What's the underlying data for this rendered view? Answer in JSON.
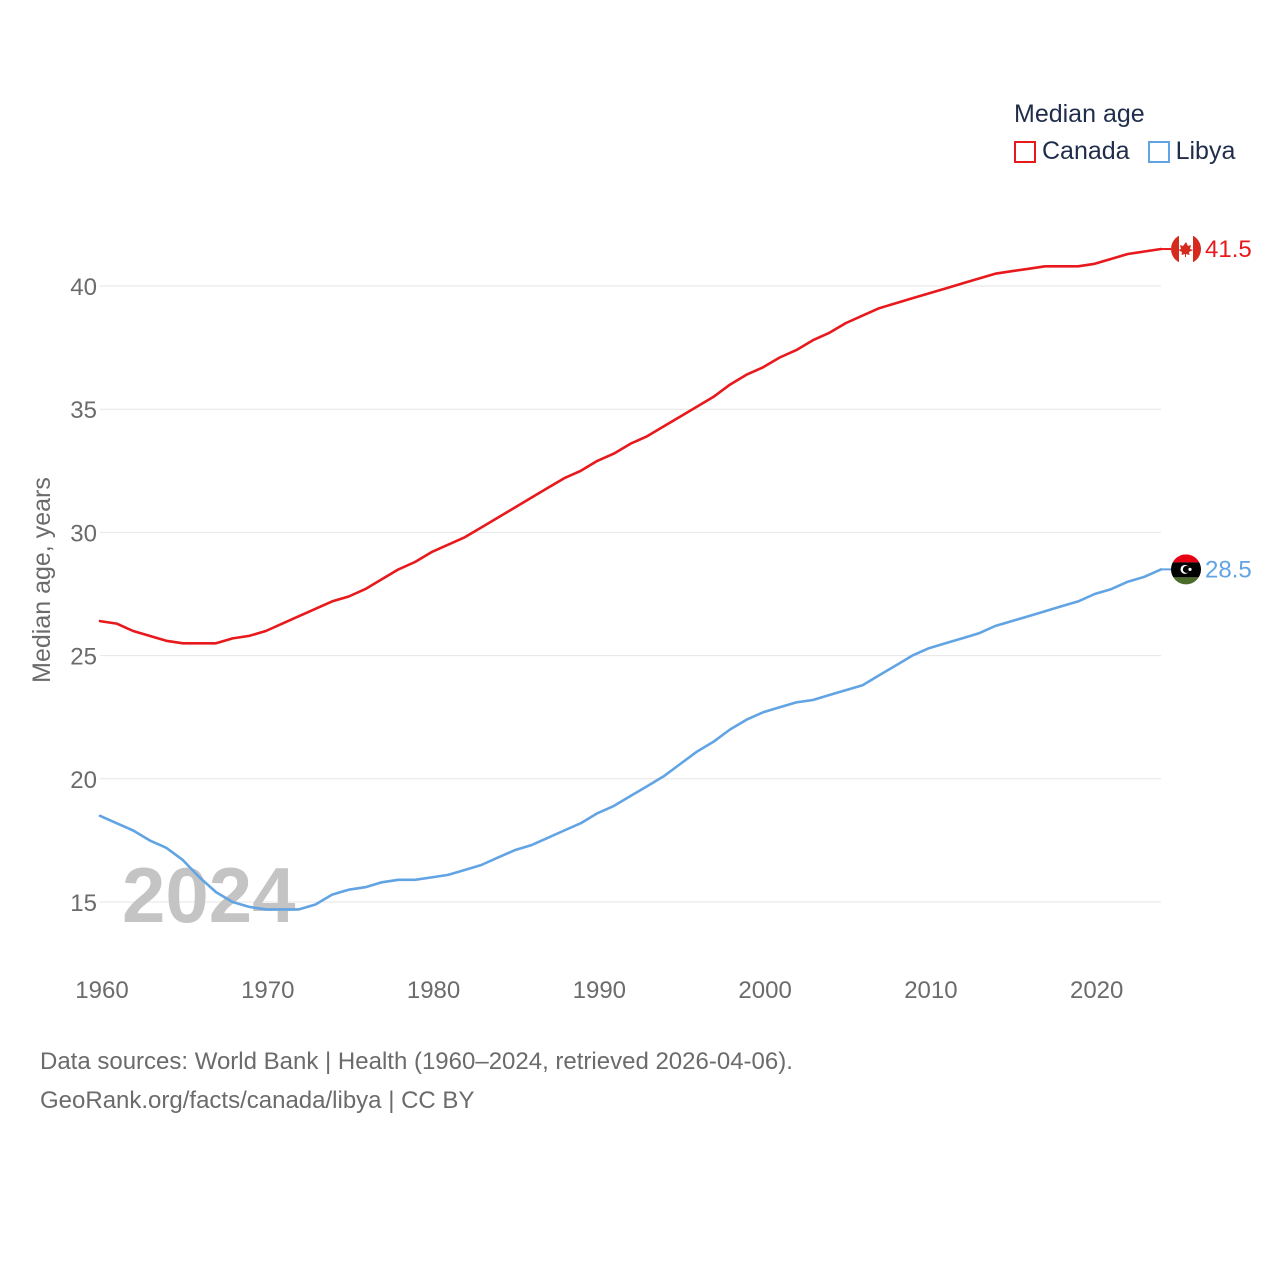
{
  "chart_data": {
    "type": "line",
    "ylabel": "Median age, years",
    "xlabel": "",
    "legend_title": "Median age",
    "legend_position": "top-right",
    "year_label": "2024",
    "x_range": [
      1960,
      2024
    ],
    "ylim": [
      12.5,
      43
    ],
    "x_ticks": [
      1960,
      1970,
      1980,
      1990,
      2000,
      2010,
      2020
    ],
    "y_ticks": [
      15,
      20,
      25,
      30,
      35,
      40
    ],
    "x": [
      1960,
      1961,
      1962,
      1963,
      1964,
      1965,
      1966,
      1967,
      1968,
      1969,
      1970,
      1971,
      1972,
      1973,
      1974,
      1975,
      1976,
      1977,
      1978,
      1979,
      1980,
      1981,
      1982,
      1983,
      1984,
      1985,
      1986,
      1987,
      1988,
      1989,
      1990,
      1991,
      1992,
      1993,
      1994,
      1995,
      1996,
      1997,
      1998,
      1999,
      2000,
      2001,
      2002,
      2003,
      2004,
      2005,
      2006,
      2007,
      2008,
      2009,
      2010,
      2011,
      2012,
      2013,
      2014,
      2015,
      2016,
      2017,
      2018,
      2019,
      2020,
      2021,
      2022,
      2023,
      2024
    ],
    "series": [
      {
        "name": "Canada",
        "color": "#e8191c",
        "end_label": "41.5",
        "values": [
          26.4,
          26.3,
          26.0,
          25.8,
          25.6,
          25.5,
          25.5,
          25.5,
          25.7,
          25.8,
          26.0,
          26.3,
          26.6,
          26.9,
          27.2,
          27.4,
          27.7,
          28.1,
          28.5,
          28.8,
          29.2,
          29.5,
          29.8,
          30.2,
          30.6,
          31.0,
          31.4,
          31.8,
          32.2,
          32.5,
          32.9,
          33.2,
          33.6,
          33.9,
          34.3,
          34.7,
          35.1,
          35.5,
          36.0,
          36.4,
          36.7,
          37.1,
          37.4,
          37.8,
          38.1,
          38.5,
          38.8,
          39.1,
          39.3,
          39.5,
          39.7,
          39.9,
          40.1,
          40.3,
          40.5,
          40.6,
          40.7,
          40.8,
          40.8,
          40.8,
          40.9,
          41.1,
          41.3,
          41.4,
          41.5
        ]
      },
      {
        "name": "Libya",
        "color": "#62a4e3",
        "end_label": "28.5",
        "values": [
          18.5,
          18.2,
          17.9,
          17.5,
          17.2,
          16.7,
          16.0,
          15.4,
          15.0,
          14.8,
          14.7,
          14.7,
          14.7,
          14.9,
          15.3,
          15.5,
          15.6,
          15.8,
          15.9,
          15.9,
          16.0,
          16.1,
          16.3,
          16.5,
          16.8,
          17.1,
          17.3,
          17.6,
          17.9,
          18.2,
          18.6,
          18.9,
          19.3,
          19.7,
          20.1,
          20.6,
          21.1,
          21.5,
          22.0,
          22.4,
          22.7,
          22.9,
          23.1,
          23.2,
          23.4,
          23.6,
          23.8,
          24.2,
          24.6,
          25.0,
          25.3,
          25.5,
          25.7,
          25.9,
          26.2,
          26.4,
          26.6,
          26.8,
          27.0,
          27.2,
          27.5,
          27.7,
          28.0,
          28.2,
          28.5
        ]
      }
    ]
  },
  "source": {
    "line1": "Data sources: World Bank | Health (1960–2024, retrieved 2026-04-06).",
    "line2": "GeoRank.org/facts/canada/libya | CC BY"
  }
}
